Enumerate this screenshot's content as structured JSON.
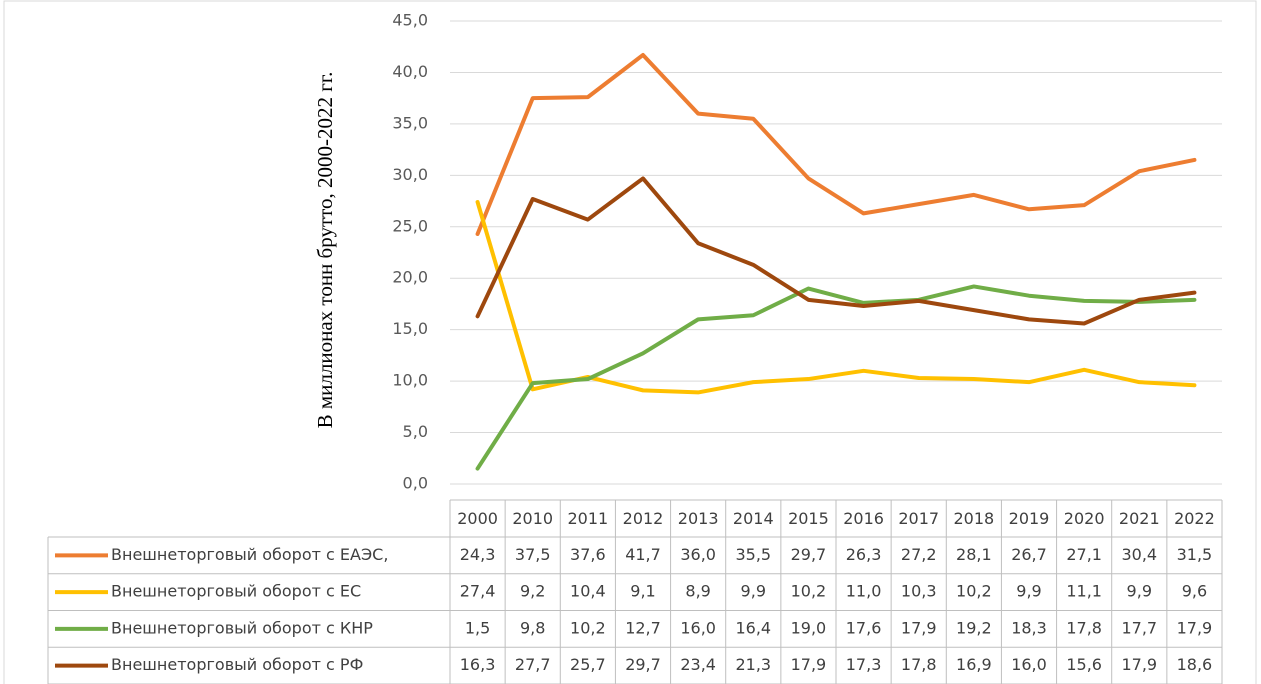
{
  "chart_data": {
    "type": "line",
    "y_axis_label": "В миллионах тонн брутто, 2000-2022 гг.",
    "categories": [
      "2000",
      "2010",
      "2011",
      "2012",
      "2013",
      "2014",
      "2015",
      "2016",
      "2017",
      "2018",
      "2019",
      "2020",
      "2021",
      "2022"
    ],
    "ylim": [
      0,
      45
    ],
    "yticks": [
      {
        "value": 0,
        "label": "0,0"
      },
      {
        "value": 5,
        "label": "5,0"
      },
      {
        "value": 10,
        "label": "10,0"
      },
      {
        "value": 15,
        "label": "15,0"
      },
      {
        "value": 20,
        "label": "20,0"
      },
      {
        "value": 25,
        "label": "25,0"
      },
      {
        "value": 30,
        "label": "30,0"
      },
      {
        "value": 35,
        "label": "35,0"
      },
      {
        "value": 40,
        "label": "40,0"
      },
      {
        "value": 45,
        "label": "45,0"
      }
    ],
    "grid": true,
    "series": [
      {
        "name": "Внешнеторговый оборот с ЕАЭС,",
        "color": "#ed7d31",
        "values": [
          24.3,
          37.5,
          37.6,
          41.7,
          36.0,
          35.5,
          29.7,
          26.3,
          27.2,
          28.1,
          26.7,
          27.1,
          30.4,
          31.5
        ],
        "value_labels": [
          "24,3",
          "37,5",
          "37,6",
          "41,7",
          "36,0",
          "35,5",
          "29,7",
          "26,3",
          "27,2",
          "28,1",
          "26,7",
          "27,1",
          "30,4",
          "31,5"
        ]
      },
      {
        "name": "Внешнеторговый оборот с ЕС",
        "color": "#ffc000",
        "values": [
          27.4,
          9.2,
          10.4,
          9.1,
          8.9,
          9.9,
          10.2,
          11.0,
          10.3,
          10.2,
          9.9,
          11.1,
          9.9,
          9.6
        ],
        "value_labels": [
          "27,4",
          "9,2",
          "10,4",
          "9,1",
          "8,9",
          "9,9",
          "10,2",
          "11,0",
          "10,3",
          "10,2",
          "9,9",
          "11,1",
          "9,9",
          "9,6"
        ]
      },
      {
        "name": "Внешнеторговый оборот с КНР",
        "color": "#70ad47",
        "values": [
          1.5,
          9.8,
          10.2,
          12.7,
          16.0,
          16.4,
          19.0,
          17.6,
          17.9,
          19.2,
          18.3,
          17.8,
          17.7,
          17.9
        ],
        "value_labels": [
          "1,5",
          "9,8",
          "10,2",
          "12,7",
          "16,0",
          "16,4",
          "19,0",
          "17,6",
          "17,9",
          "19,2",
          "18,3",
          "17,8",
          "17,7",
          "17,9"
        ]
      },
      {
        "name": "Внешнеторговый оборот с РФ",
        "color": "#9e480e",
        "values": [
          16.3,
          27.7,
          25.7,
          29.7,
          23.4,
          21.3,
          17.9,
          17.3,
          17.8,
          16.9,
          16.0,
          15.6,
          17.9,
          18.6
        ],
        "value_labels": [
          "16,3",
          "27,7",
          "25,7",
          "29,7",
          "23,4",
          "21,3",
          "17,9",
          "17,3",
          "17,8",
          "16,9",
          "16,0",
          "15,6",
          "17,9",
          "18,6"
        ]
      }
    ]
  }
}
